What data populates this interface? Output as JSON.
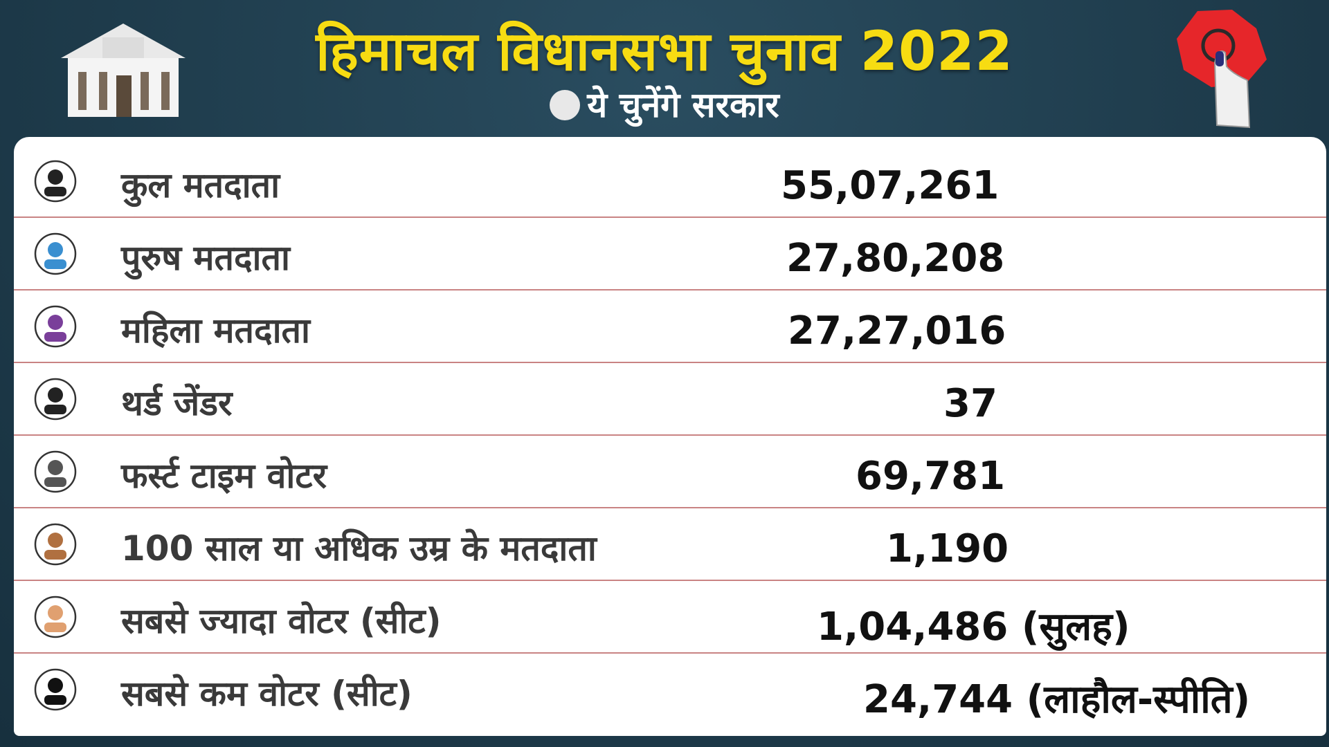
{
  "header": {
    "title": "हिमाचल विधानसभा चुनाव 2022",
    "subtitle": "ये चुनेंगे सरकार"
  },
  "table": {
    "rows": [
      [
        "कुल मतदाता",
        "55,07,261"
      ],
      [
        "पुरुष मतदाता",
        "27,80,208"
      ],
      [
        "महिला मतदाता",
        "27,27,016"
      ],
      [
        "थर्ड जेंडर",
        "37"
      ],
      [
        "फर्स्ट टाइम वोटर",
        "69,781"
      ],
      [
        "100 साल या अधिक उम्र के मतदाता",
        "1,190"
      ],
      [
        "सबसे ज्यादा वोटर (सीट)",
        "1,04,486 (सुलह)"
      ],
      [
        "सबसे कम वोटर (सीट)",
        "24,744 (लाहौल-स्पीति)"
      ]
    ]
  }
}
